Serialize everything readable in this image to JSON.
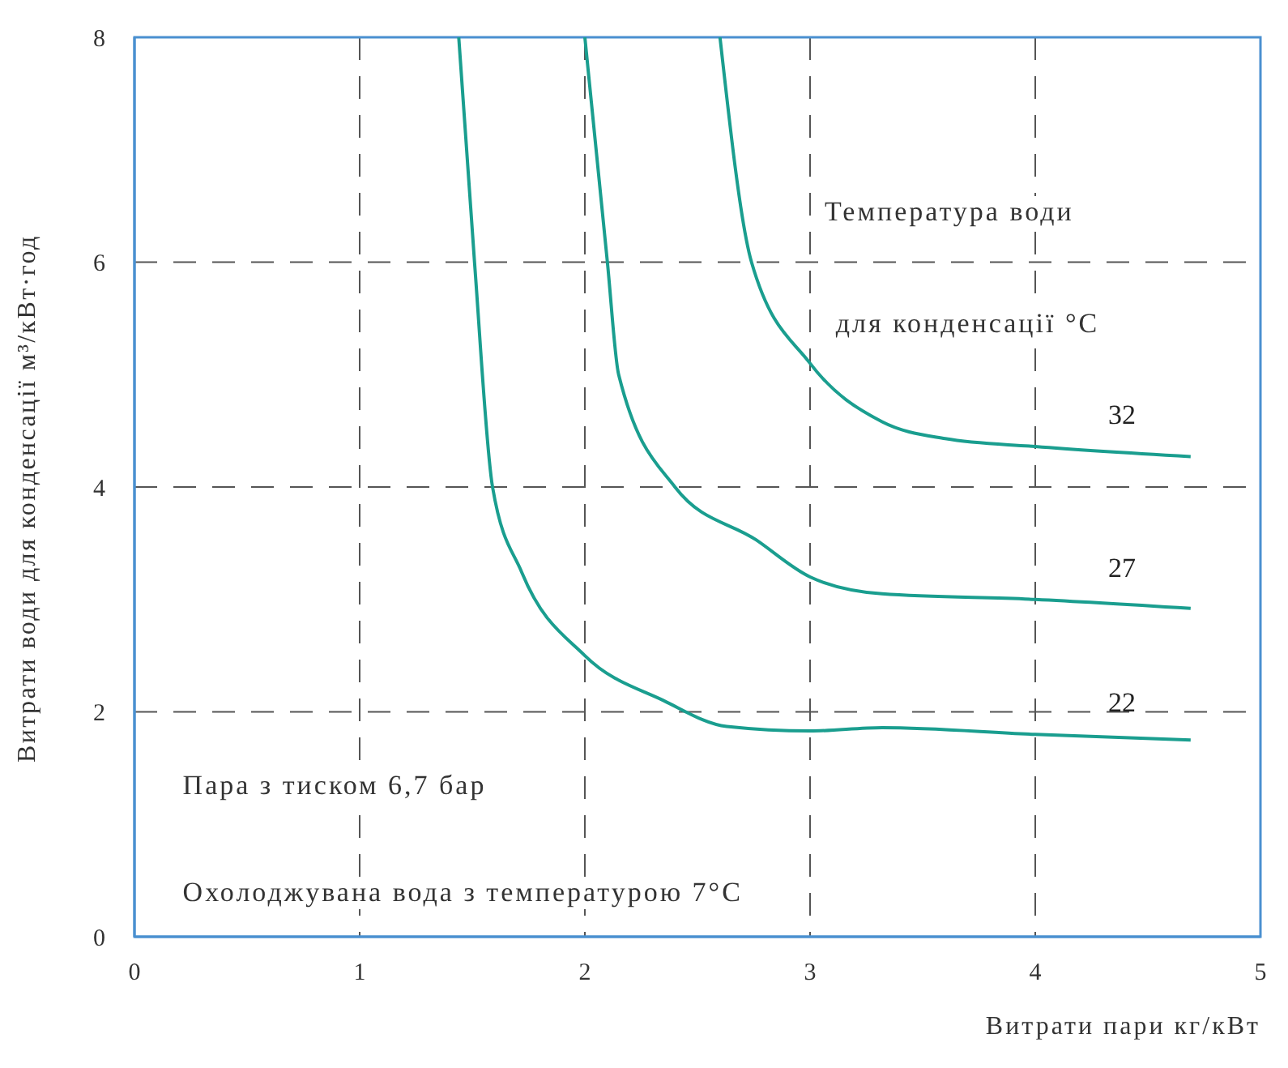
{
  "chart_data": {
    "type": "line",
    "xlabel": "Витрати пари кг/кВт",
    "ylabel": "Витрати води для конденсації м³/кВт·год",
    "xlim": [
      0,
      5
    ],
    "xticks": [
      0,
      1,
      2,
      3,
      4,
      5
    ],
    "ylim": [
      0,
      8
    ],
    "yticks": [
      0,
      2,
      4,
      6,
      8
    ],
    "grid": true,
    "marker": "none",
    "line_style": "solid",
    "series": [
      {
        "name": "32",
        "color": "#1a9e8f",
        "x": [
          2.6,
          2.74,
          3.0,
          3.32,
          3.6,
          4.0,
          4.69
        ],
        "values": [
          8,
          6,
          5.1,
          4.58,
          4.43,
          4.36,
          4.27
        ]
      },
      {
        "name": "27",
        "color": "#1a9e8f",
        "x": [
          2.0,
          2.1,
          2.15,
          2.4,
          2.76,
          3.0,
          3.32,
          4.0,
          4.69
        ],
        "values": [
          8,
          6,
          5.0,
          4,
          3.53,
          3.2,
          3.05,
          3.0,
          2.92
        ]
      },
      {
        "name": "22",
        "color": "#1a9e8f",
        "x": [
          1.44,
          1.51,
          1.59,
          1.72,
          2.0,
          2.35,
          2.63,
          3.0,
          3.32,
          4.0,
          4.69
        ],
        "values": [
          8,
          6,
          4,
          3.24,
          2.5,
          2.1,
          1.87,
          1.83,
          1.86,
          1.8,
          1.75
        ]
      }
    ],
    "annotations": [
      "Температура води",
      "для конденсації °C",
      "Пара з тиском 6,7 бар",
      "Охолоджувана вода з температурою 7°C"
    ]
  }
}
